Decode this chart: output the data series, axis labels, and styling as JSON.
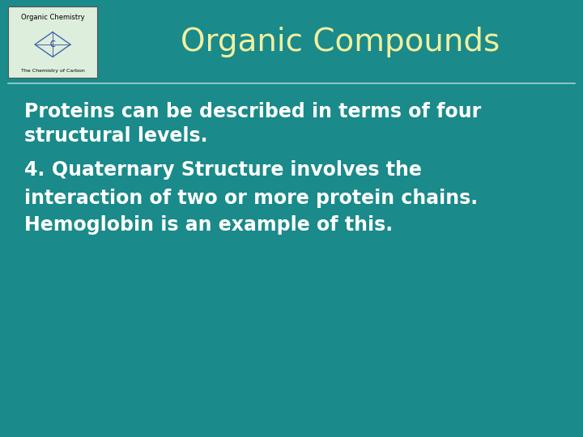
{
  "background_color": "#1a8a8a",
  "title": "Organic Compounds",
  "title_color": "#f0f0a0",
  "title_fontsize": 28,
  "body_color": "#ffffff",
  "body_fontsize": 17,
  "logo_box_color": "#ddeedd",
  "logo_border_color": "#555555",
  "fig_width": 7.2,
  "fig_height": 5.4,
  "body_lines": [
    "Proteins can be described in terms of four",
    "structural levels.",
    "",
    "interaction of two or more protein chains.",
    "Hemoglobin is an example of this."
  ],
  "line3_prefix": "4. ",
  "line3_bold": "Quaternary Structure",
  "line3_suffix": " involves the"
}
